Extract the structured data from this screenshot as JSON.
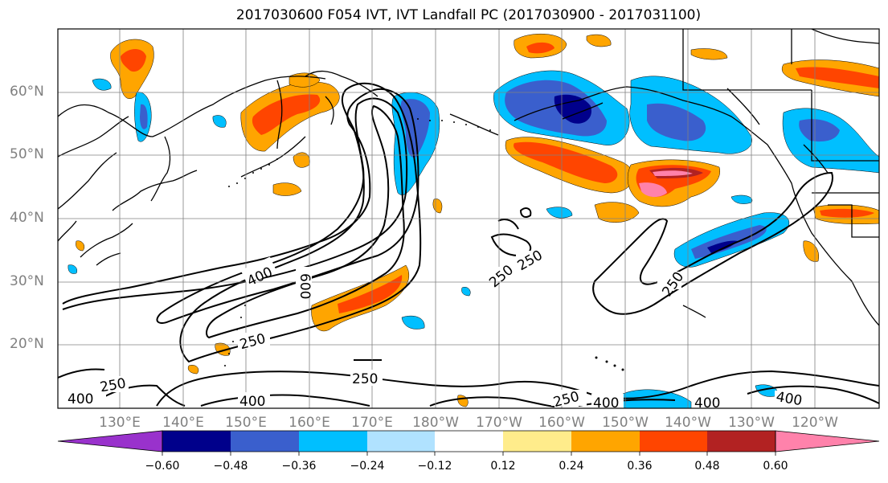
{
  "title": "2017030600 F054 IVT, IVT Landfall PC (2017030900 - 2017031100)",
  "map": {
    "lat_labels": [
      "60°N",
      "50°N",
      "40°N",
      "30°N",
      "20°N"
    ],
    "lon_labels": [
      "130°E",
      "140°E",
      "150°E",
      "160°E",
      "170°E",
      "180°W",
      "170°W",
      "160°W",
      "150°W",
      "140°W",
      "130°W",
      "120°W"
    ],
    "contour_labels": [
      "400",
      "600",
      "250",
      "250",
      "250",
      "250",
      "250",
      "250",
      "400",
      "250",
      "400",
      "400",
      "400",
      "400"
    ]
  },
  "colorbar": {
    "ticks": [
      "−0.60",
      "−0.48",
      "−0.36",
      "−0.24",
      "−0.12",
      "0.12",
      "0.24",
      "0.36",
      "0.48",
      "0.60"
    ],
    "colors": [
      "#9932cc",
      "#00008b",
      "#3a5fcd",
      "#00bfff",
      "#b0e2ff",
      "#ffffff",
      "#ffec8b",
      "#ffa500",
      "#ff4500",
      "#b22222",
      "#ff82ab"
    ]
  }
}
